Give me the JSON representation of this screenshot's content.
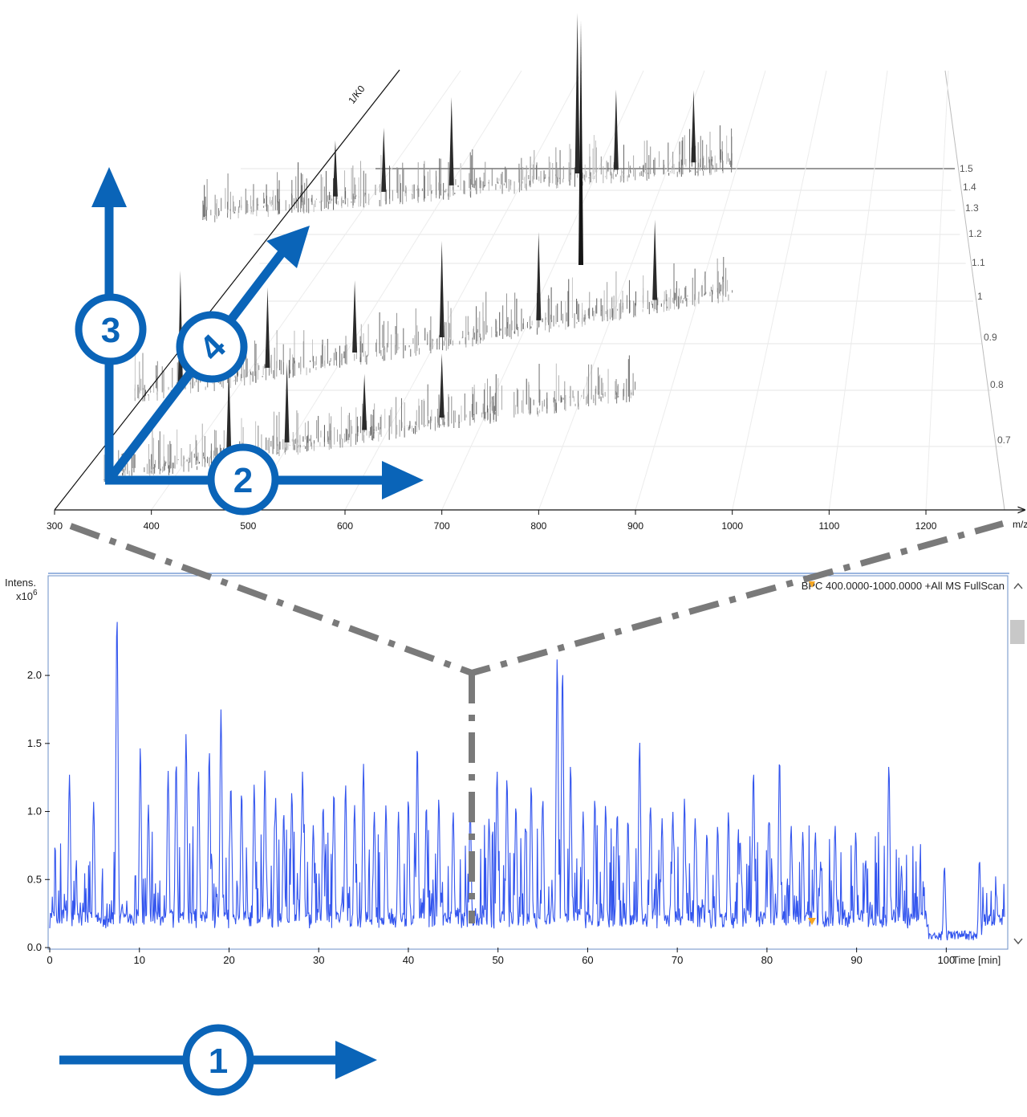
{
  "colors": {
    "accent": "#0a64b8",
    "trace": "#3355ee",
    "guide": "#7a7a7a",
    "peaks_dark": "#2a2a2a",
    "peaks_light": "#a8a8a8",
    "scroll_track": "#c8c8c8"
  },
  "icons": [
    "arrow-right-icon",
    "arrow-up-icon",
    "arrow-diagonal-icon",
    "scroll-up-icon",
    "scroll-down-icon"
  ],
  "callouts": {
    "c1": "1",
    "c2": "2",
    "c3": "3",
    "c4": "4"
  },
  "chart_data": [
    {
      "type": "3d-surface",
      "x_axis_label": "m/z",
      "depth_axis_label": "1/K0",
      "x_ticks": [
        "300",
        "400",
        "500",
        "600",
        "700",
        "800",
        "900",
        "1000",
        "1100",
        "1200"
      ],
      "depth_ticks": [
        "1.5",
        "1.4",
        "1.3",
        "1.2",
        "1.1",
        "1",
        "0.9",
        "0.8",
        "0.7"
      ],
      "xlim": [
        300,
        1200
      ],
      "depth_range": [
        0.7,
        1.5
      ],
      "bands": [
        {
          "mobility": 1.4,
          "x_range": [
            450,
            1000
          ],
          "max_peaks": [
            [
              840,
              1.0
            ],
            [
              710,
              0.55
            ],
            [
              960,
              0.45
            ],
            [
              880,
              0.5
            ],
            [
              640,
              0.4
            ],
            [
              590,
              0.35
            ]
          ]
        },
        {
          "mobility": 1.1,
          "x_range": [
            380,
            1000
          ],
          "max_peaks": [
            [
              430,
              0.7
            ],
            [
              520,
              0.5
            ],
            [
              610,
              0.45
            ],
            [
              700,
              0.6
            ],
            [
              800,
              0.55
            ],
            [
              920,
              0.5
            ]
          ]
        },
        {
          "mobility": 0.9,
          "x_range": [
            350,
            900
          ],
          "max_peaks": [
            [
              480,
              0.55
            ],
            [
              540,
              0.5
            ],
            [
              620,
              0.35
            ],
            [
              700,
              0.4
            ]
          ]
        }
      ]
    },
    {
      "type": "line",
      "y_axis_label_line1": "Intens.",
      "y_axis_label_line2": "x10",
      "y_axis_label_sup": "6",
      "xlabel": "Time [min]",
      "trace_title": "BPC 400.0000-1000.0000 +All MS FullScan",
      "x_ticks": [
        "0",
        "10",
        "20",
        "30",
        "40",
        "50",
        "60",
        "70",
        "80",
        "90",
        "100"
      ],
      "y_ticks": [
        "0.0",
        "0.5",
        "1.0",
        "1.5",
        "2.0"
      ],
      "xlim": [
        0,
        106.5
      ],
      "ylim": [
        0,
        2.5
      ],
      "baseline": 0.2,
      "series": [
        {
          "major_peaks": [
            [
              2.2,
              1.27
            ],
            [
              4.9,
              1.07
            ],
            [
              7.5,
              2.45
            ],
            [
              10.1,
              1.48
            ],
            [
              11.0,
              1.05
            ],
            [
              13.2,
              1.3
            ],
            [
              14.1,
              1.37
            ],
            [
              15.2,
              1.57
            ],
            [
              16.6,
              1.3
            ],
            [
              17.8,
              1.45
            ],
            [
              19.1,
              1.75
            ],
            [
              20.2,
              1.2
            ],
            [
              21.4,
              1.15
            ],
            [
              22.8,
              1.2
            ],
            [
              24.0,
              1.3
            ],
            [
              25.2,
              1.1
            ],
            [
              26.1,
              1.0
            ],
            [
              27.0,
              1.15
            ],
            [
              28.2,
              1.3
            ],
            [
              29.4,
              0.9
            ],
            [
              30.5,
              1.05
            ],
            [
              31.7,
              1.15
            ],
            [
              33.0,
              1.2
            ],
            [
              34.0,
              1.05
            ],
            [
              35.0,
              1.35
            ],
            [
              36.2,
              1.0
            ],
            [
              37.5,
              1.05
            ],
            [
              38.9,
              1.0
            ],
            [
              40.0,
              1.1
            ],
            [
              41.0,
              1.5
            ],
            [
              42.0,
              1.05
            ],
            [
              43.4,
              1.1
            ],
            [
              45.0,
              1.0
            ],
            [
              46.9,
              1.05
            ],
            [
              49.0,
              0.95
            ],
            [
              49.9,
              1.3
            ],
            [
              51.0,
              1.25
            ],
            [
              52.0,
              1.05
            ],
            [
              53.7,
              1.2
            ],
            [
              55.0,
              1.1
            ],
            [
              56.6,
              2.13
            ],
            [
              57.2,
              2.05
            ],
            [
              58.1,
              1.35
            ],
            [
              59.5,
              1.0
            ],
            [
              60.8,
              1.1
            ],
            [
              62.0,
              1.05
            ],
            [
              63.3,
              1.0
            ],
            [
              64.5,
              0.95
            ],
            [
              65.8,
              1.52
            ],
            [
              67.0,
              1.05
            ],
            [
              68.3,
              0.95
            ],
            [
              69.5,
              1.0
            ],
            [
              70.8,
              1.1
            ],
            [
              72.0,
              0.95
            ],
            [
              73.3,
              0.85
            ],
            [
              74.5,
              0.9
            ],
            [
              75.7,
              1.0
            ],
            [
              77.0,
              0.8
            ],
            [
              78.5,
              1.3
            ],
            [
              80.2,
              0.95
            ],
            [
              81.4,
              1.4
            ],
            [
              82.7,
              0.9
            ],
            [
              84.0,
              0.85
            ],
            [
              85.4,
              0.85
            ],
            [
              87.6,
              0.9
            ],
            [
              89.9,
              0.85
            ],
            [
              91.0,
              0.65
            ],
            [
              93.6,
              1.35
            ],
            [
              95.0,
              0.6
            ],
            [
              99.8,
              0.6
            ],
            [
              103.7,
              0.65
            ],
            [
              105.6,
              0.4
            ]
          ]
        }
      ]
    }
  ]
}
